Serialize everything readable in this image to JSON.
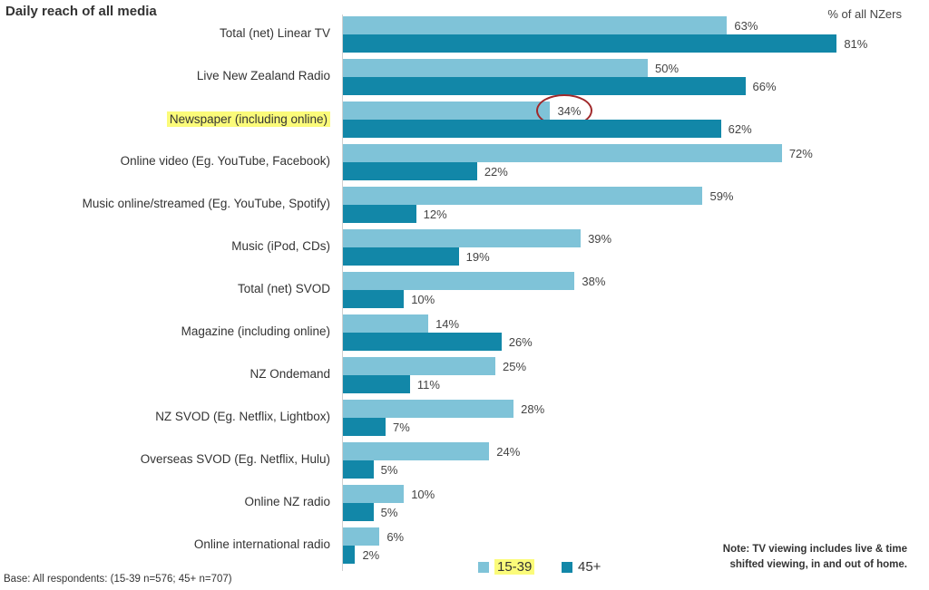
{
  "title": "Daily reach of all media",
  "unit_label": "% of all NZers",
  "note": "Note: TV viewing includes live & time shifted viewing, in and out of home.",
  "base": "Base: All respondents: (15-39 n=576; 45+ n=707)",
  "highlighted_category": "Newspaper (including online)",
  "circled_value": {
    "series": "15-39",
    "category": "Newspaper (including online)"
  },
  "colors": {
    "15-39": "#7fc3d8",
    "45+": "#1287a8",
    "highlight": "#fbfb7a",
    "circle": "#a0282a"
  },
  "chart_data": {
    "type": "bar",
    "orientation": "horizontal",
    "xlim": [
      0,
      100
    ],
    "legend_position": "bottom",
    "categories": [
      "Total (net) Linear TV",
      "Live New Zealand Radio",
      "Newspaper (including online)",
      "Online video (Eg. YouTube, Facebook)",
      "Music online/streamed (Eg. YouTube, Spotify)",
      "Music (iPod, CDs)",
      "Total (net) SVOD",
      "Magazine (including online)",
      "NZ Ondemand",
      "NZ SVOD (Eg. Netflix, Lightbox)",
      "Overseas SVOD (Eg. Netflix, Hulu)",
      "Online NZ radio",
      "Online international radio"
    ],
    "series": [
      {
        "name": "15-39",
        "values": [
          63,
          50,
          34,
          72,
          59,
          39,
          38,
          14,
          25,
          28,
          24,
          10,
          6
        ]
      },
      {
        "name": "45+",
        "values": [
          81,
          66,
          62,
          22,
          12,
          19,
          10,
          26,
          11,
          7,
          5,
          5,
          2
        ]
      }
    ]
  }
}
